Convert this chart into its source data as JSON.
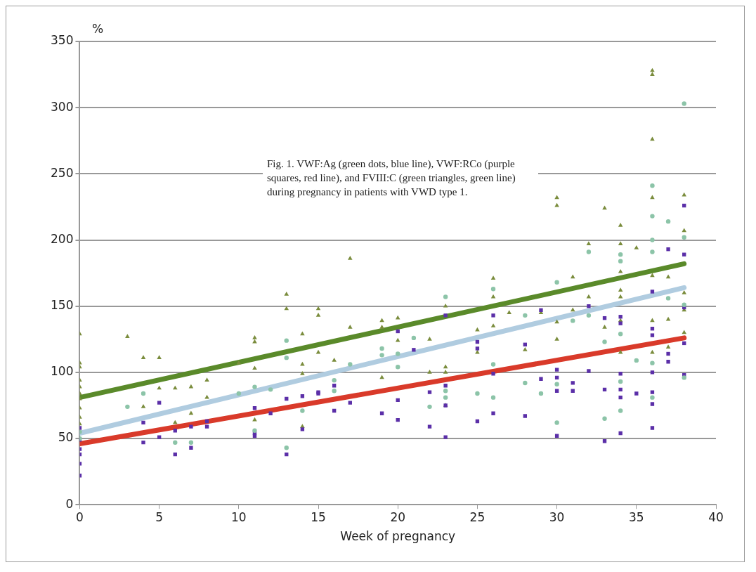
{
  "chart_data": {
    "type": "scatter",
    "xlabel": "Week of pregnancy",
    "ylabel": "%",
    "xlim": [
      0,
      40
    ],
    "xticks": [
      0,
      5,
      10,
      15,
      20,
      25,
      30,
      35,
      40
    ],
    "ylim": [
      0,
      350
    ],
    "yticks": [
      0,
      50,
      100,
      150,
      200,
      250,
      300,
      350
    ],
    "grid": "y",
    "legend": false,
    "annotations": [
      "Fig. 1. VWF:Ag (green dots, blue line), VWF:RCo (purple squares, red line), and FVIII:C (green triangles, green line) during pregnancy in patients with VWD type 1."
    ],
    "series": [
      {
        "marker": "circle",
        "color": "#8cc4a8",
        "x": [
          0,
          0,
          3,
          4,
          6,
          7,
          10,
          11,
          11,
          12,
          13,
          13,
          13,
          14,
          16,
          16,
          17,
          19,
          19,
          20,
          20,
          21,
          22,
          23,
          23,
          23,
          25,
          26,
          26,
          26,
          28,
          28,
          29,
          30,
          30,
          30,
          31,
          32,
          32,
          33,
          33,
          34,
          34,
          34,
          34,
          34,
          35,
          36,
          36,
          36,
          36,
          36,
          36,
          37,
          37,
          38,
          38,
          38,
          38
        ],
        "values": [
          55,
          50,
          74,
          84,
          47,
          47,
          84,
          89,
          56,
          87,
          124,
          111,
          43,
          71,
          94,
          86,
          106,
          118,
          113,
          114,
          104,
          126,
          74,
          157,
          86,
          81,
          84,
          163,
          106,
          81,
          143,
          92,
          84,
          168,
          91,
          62,
          139,
          191,
          143,
          123,
          65,
          189,
          184,
          129,
          93,
          71,
          109,
          241,
          218,
          200,
          191,
          107,
          81,
          214,
          156,
          303,
          202,
          151,
          96
        ]
      },
      {
        "marker": "square",
        "color": "#5b2fa8",
        "x": [
          0,
          0,
          0,
          0,
          0,
          0,
          4,
          4,
          5,
          5,
          6,
          6,
          7,
          7,
          8,
          8,
          11,
          11,
          11,
          12,
          13,
          13,
          14,
          14,
          15,
          15,
          16,
          16,
          17,
          19,
          20,
          20,
          20,
          21,
          22,
          22,
          23,
          23,
          23,
          23,
          25,
          25,
          25,
          26,
          26,
          26,
          28,
          28,
          29,
          29,
          30,
          30,
          30,
          30,
          31,
          31,
          32,
          32,
          33,
          33,
          33,
          34,
          34,
          34,
          34,
          34,
          34,
          35,
          36,
          36,
          36,
          36,
          36,
          36,
          36,
          37,
          37,
          37,
          38,
          38,
          38,
          38,
          38
        ],
        "values": [
          58,
          49,
          42,
          38,
          31,
          22,
          62,
          47,
          77,
          51,
          56,
          38,
          59,
          43,
          63,
          59,
          73,
          54,
          52,
          69,
          80,
          38,
          82,
          57,
          85,
          84,
          90,
          71,
          77,
          69,
          131,
          79,
          64,
          117,
          85,
          59,
          143,
          90,
          75,
          51,
          123,
          118,
          63,
          143,
          99,
          69,
          121,
          67,
          147,
          95,
          102,
          96,
          86,
          52,
          92,
          86,
          150,
          101,
          141,
          87,
          48,
          142,
          137,
          99,
          87,
          81,
          54,
          84,
          161,
          133,
          128,
          100,
          85,
          76,
          58,
          193,
          114,
          108,
          226,
          189,
          149,
          122,
          98
        ]
      },
      {
        "marker": "triangle",
        "color": "#7a8c3c",
        "x": [
          0,
          0,
          0,
          0,
          0,
          0,
          0,
          0,
          0,
          0,
          3,
          4,
          4,
          5,
          5,
          6,
          6,
          7,
          7,
          8,
          8,
          10,
          11,
          11,
          11,
          11,
          13,
          13,
          14,
          14,
          14,
          14,
          15,
          15,
          15,
          16,
          17,
          17,
          19,
          19,
          19,
          20,
          20,
          22,
          22,
          23,
          23,
          23,
          23,
          25,
          25,
          26,
          26,
          26,
          27,
          28,
          29,
          30,
          30,
          30,
          30,
          31,
          31,
          32,
          32,
          33,
          33,
          34,
          34,
          34,
          34,
          34,
          34,
          34,
          35,
          36,
          36,
          36,
          36,
          36,
          36,
          36,
          37,
          37,
          37,
          38,
          38,
          38,
          38,
          38
        ],
        "values": [
          129,
          107,
          104,
          94,
          89,
          84,
          80,
          73,
          66,
          61,
          127,
          111,
          74,
          111,
          88,
          88,
          62,
          89,
          69,
          94,
          81,
          107,
          126,
          123,
          103,
          64,
          159,
          148,
          129,
          106,
          99,
          59,
          148,
          143,
          115,
          109,
          186,
          134,
          139,
          134,
          96,
          141,
          124,
          125,
          100,
          150,
          104,
          100,
          75,
          132,
          115,
          171,
          157,
          135,
          145,
          117,
          145,
          232,
          226,
          138,
          125,
          172,
          147,
          197,
          157,
          224,
          134,
          211,
          197,
          176,
          162,
          157,
          139,
          115,
          194,
          328,
          325,
          276,
          232,
          173,
          139,
          115,
          172,
          140,
          119,
          234,
          207,
          160,
          147,
          130
        ]
      },
      {
        "type": "line",
        "marker": "none",
        "color": "#b0cce0",
        "x": [
          0,
          38
        ],
        "values": [
          54,
          164
        ]
      },
      {
        "type": "line",
        "marker": "none",
        "color": "#d93a2a",
        "x": [
          0,
          38
        ],
        "values": [
          46,
          126
        ]
      },
      {
        "type": "line",
        "marker": "none",
        "color": "#5a8a2a",
        "x": [
          0,
          38
        ],
        "values": [
          81,
          182
        ]
      }
    ]
  }
}
